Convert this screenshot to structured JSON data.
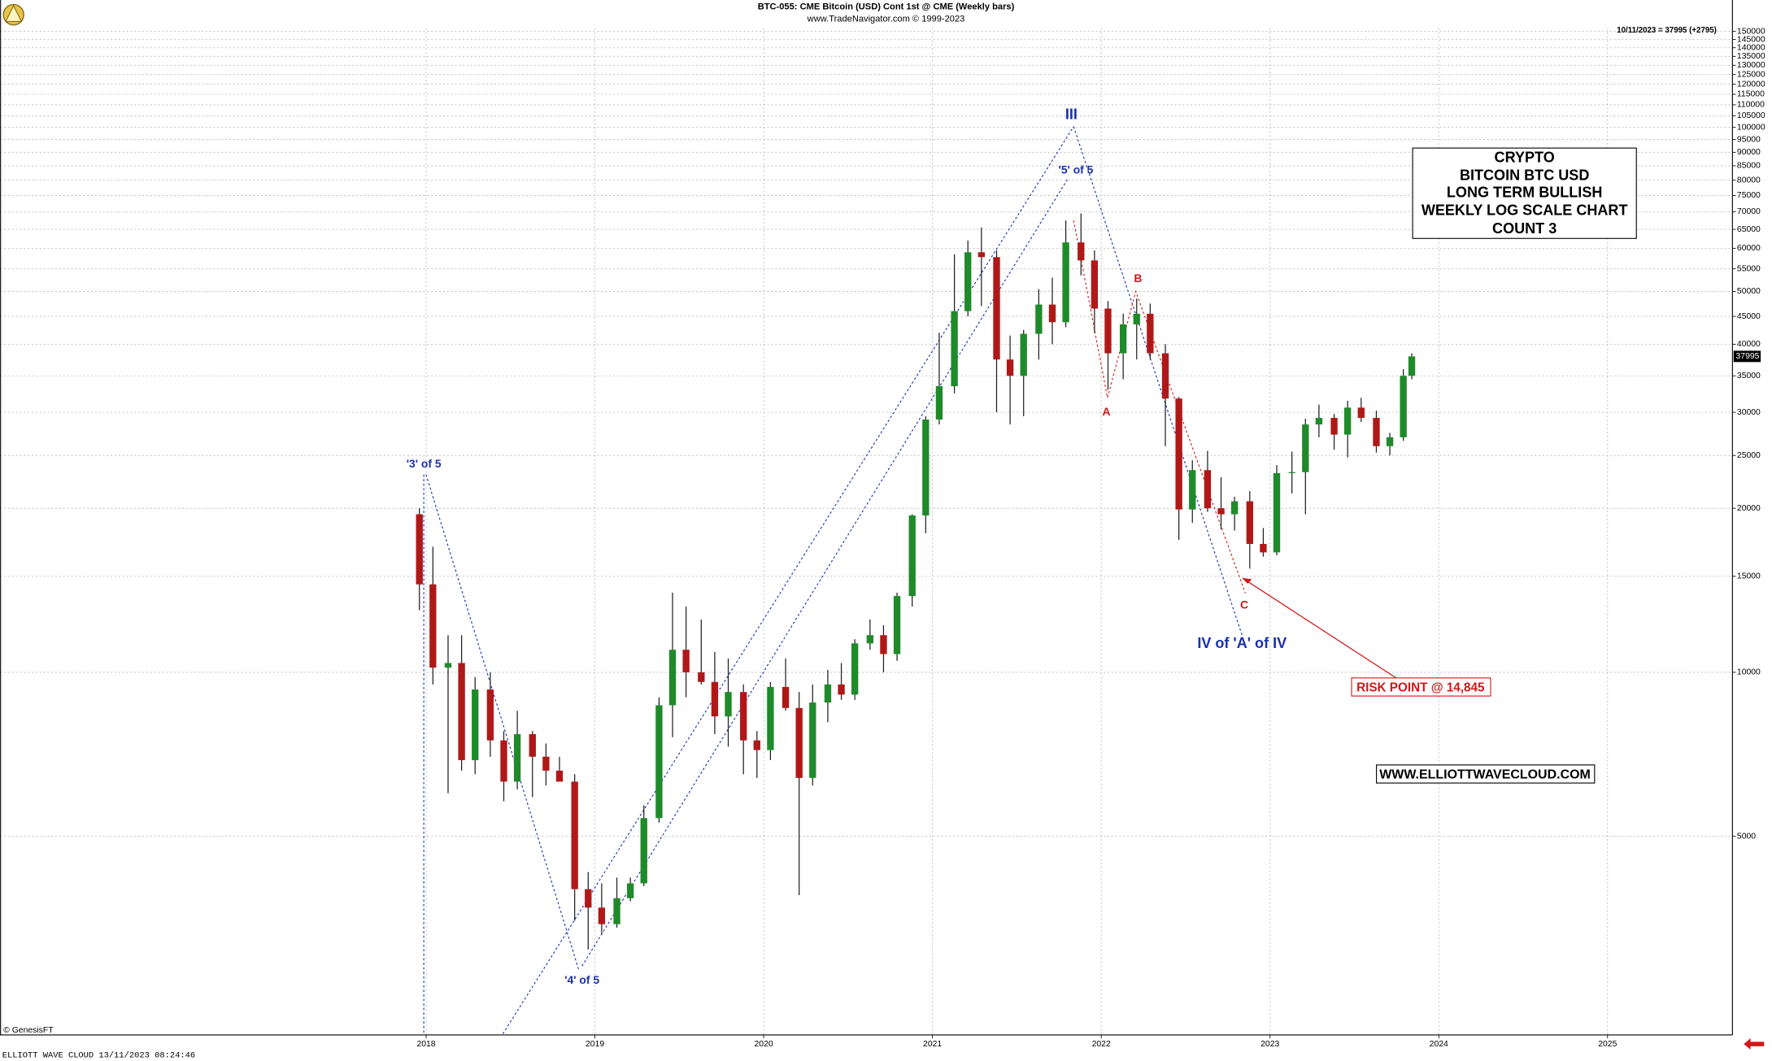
{
  "chart_data": {
    "type": "candlestick",
    "title": "BTC-055:  CME Bitcoin (USD) Cont 1st @ CME  (Weekly bars)",
    "subtitle": "www.TradeNavigator.com © 1999-2023",
    "last_quote": "10/11/2023 = 37995 (+2795)",
    "box_lines": [
      "CRYPTO",
      "BITCOIN BTC USD",
      "LONG TERM  BULLISH",
      "WEEKLY LOG SCALE CHART",
      "COUNT 3"
    ],
    "annotations": [
      "III",
      "'5' of 5",
      "B",
      "A",
      "C",
      "IV of 'A' of IV",
      "'3' of 5",
      "'4' of 5",
      "RISK POINT @ 14,845",
      "WWW.ELLIOTTWAVECLOUD.COM"
    ],
    "source": "© GenesisFT",
    "footer": "ELLIOTT WAVE CLOUD   13/11/2023 08:24:46",
    "log_scale": true,
    "grid": true,
    "up_color": "#1f8a2a",
    "down_color": "#b01818",
    "xlim": [
      2015.475,
      2025.74
    ],
    "xticks": [
      2018,
      2019,
      2020,
      2021,
      2022,
      2023,
      2024,
      2025
    ],
    "ylim": [
      2160,
      152000
    ],
    "yticks": [
      5000,
      10000,
      15000,
      20000,
      25000,
      30000,
      35000,
      40000,
      45000,
      50000,
      55000,
      60000,
      65000,
      70000,
      75000,
      80000,
      85000,
      90000,
      95000,
      100000,
      105000,
      110000,
      115000,
      120000,
      125000,
      130000,
      135000,
      140000,
      145000,
      150000
    ],
    "x": [
      2017.96,
      2018.04,
      2018.13,
      2018.21,
      2018.29,
      2018.38,
      2018.46,
      2018.54,
      2018.63,
      2018.71,
      2018.79,
      2018.88,
      2018.96,
      2019.04,
      2019.13,
      2019.21,
      2019.29,
      2019.38,
      2019.46,
      2019.54,
      2019.63,
      2019.71,
      2019.79,
      2019.88,
      2019.96,
      2020.04,
      2020.13,
      2020.21,
      2020.29,
      2020.38,
      2020.46,
      2020.54,
      2020.63,
      2020.71,
      2020.79,
      2020.88,
      2020.96,
      2021.04,
      2021.13,
      2021.21,
      2021.29,
      2021.38,
      2021.46,
      2021.54,
      2021.63,
      2021.71,
      2021.79,
      2021.88,
      2021.96,
      2022.04,
      2022.13,
      2022.21,
      2022.29,
      2022.38,
      2022.46,
      2022.54,
      2022.63,
      2022.71,
      2022.79,
      2022.88,
      2022.96,
      2023.04,
      2023.13,
      2023.21,
      2023.29,
      2023.38,
      2023.46,
      2023.54,
      2023.63,
      2023.71,
      2023.79,
      2023.84
    ],
    "open": [
      19500,
      14500,
      10200,
      10400,
      6900,
      9300,
      7500,
      6300,
      7700,
      7000,
      6600,
      6300,
      4000,
      3700,
      3450,
      3850,
      4100,
      5400,
      8700,
      11000,
      10000,
      9600,
      8300,
      9200,
      7500,
      7200,
      9400,
      8600,
      6400,
      8800,
      9500,
      9100,
      11300,
      11700,
      10800,
      13800,
      19400,
      29100,
      33500,
      46000,
      59000,
      57800,
      37500,
      35000,
      41800,
      47300,
      43900,
      61500,
      57000,
      46500,
      38500,
      43500,
      45500,
      38500,
      31800,
      19900,
      23500,
      20000,
      19500,
      20600,
      17200,
      16600,
      23200,
      23300,
      28500,
      29300,
      27300,
      30600,
      29300,
      26000,
      27000,
      35000
    ],
    "high": [
      20000,
      17000,
      11700,
      11700,
      9800,
      10000,
      7800,
      8500,
      7800,
      7400,
      7000,
      6500,
      4300,
      4100,
      4200,
      4200,
      5700,
      9000,
      14000,
      13200,
      12500,
      10900,
      10600,
      9500,
      7800,
      9600,
      10600,
      9200,
      9500,
      10100,
      10400,
      11500,
      12500,
      12200,
      14000,
      19500,
      29500,
      42000,
      58500,
      62000,
      65500,
      59500,
      41500,
      42500,
      50500,
      53000,
      67500,
      69500,
      59500,
      48000,
      45500,
      48500,
      47500,
      40000,
      32000,
      24500,
      25500,
      22800,
      21000,
      21500,
      18400,
      24000,
      25400,
      29200,
      31000,
      29800,
      31500,
      31900,
      30200,
      27500,
      36000,
      38500
    ],
    "low": [
      13000,
      9500,
      6000,
      6600,
      6500,
      7000,
      5800,
      6100,
      5900,
      6200,
      6300,
      3500,
      3100,
      3300,
      3400,
      3800,
      4050,
      5300,
      7600,
      9000,
      9500,
      7700,
      7300,
      6500,
      6400,
      6900,
      8500,
      3900,
      6200,
      8100,
      8900,
      8900,
      11000,
      10000,
      10500,
      13200,
      18000,
      28500,
      32500,
      45000,
      47000,
      30000,
      28500,
      29500,
      37500,
      40000,
      43000,
      53500,
      42000,
      33000,
      34500,
      37500,
      37500,
      26000,
      17500,
      18800,
      19700,
      18300,
      18200,
      15500,
      16300,
      16400,
      21300,
      19500,
      27000,
      25600,
      24800,
      28800,
      25300,
      25000,
      26600,
      34500
    ],
    "close": [
      14500,
      10200,
      10400,
      6900,
      9300,
      7500,
      6300,
      7700,
      7000,
      6600,
      6300,
      4000,
      3700,
      3450,
      3850,
      4100,
      5400,
      8700,
      11000,
      10000,
      9600,
      8300,
      9200,
      7500,
      7200,
      9400,
      8600,
      6400,
      8800,
      9500,
      9100,
      11300,
      11700,
      10800,
      13800,
      19400,
      29100,
      33500,
      46000,
      59000,
      57800,
      37500,
      35000,
      41800,
      47300,
      43900,
      61500,
      57000,
      46500,
      38500,
      43500,
      45500,
      38500,
      31800,
      19900,
      23500,
      20000,
      19500,
      20600,
      17200,
      16600,
      23200,
      23300,
      28500,
      29300,
      27300,
      30600,
      29300,
      26000,
      27000,
      35000,
      37995
    ]
  }
}
